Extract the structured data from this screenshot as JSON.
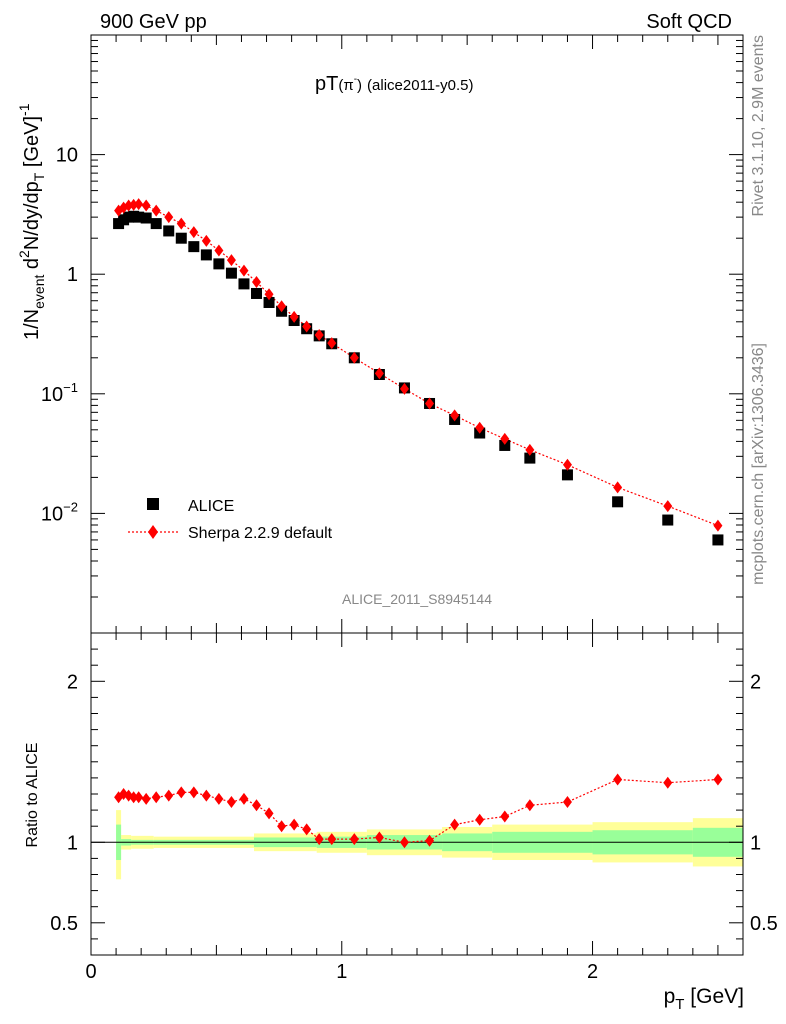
{
  "header": {
    "left": "900 GeV pp",
    "right": "Soft QCD"
  },
  "side_text": {
    "top": "Rivet 3.1.10,  2.9M events",
    "bottom": "mcplots.cern.ch [arXiv:1306.3436]"
  },
  "watermark": "ALICE_2011_S8945144",
  "colors": {
    "data": "#000000",
    "mc": "#ff0000",
    "band_inner": "#99ff99",
    "band_outer": "#ffff99"
  },
  "chart_data": [
    {
      "type": "scatter",
      "title_main": "pT",
      "title_particle": "(π",
      "title_charge": "-",
      "title_close": ")",
      "title_tag": "(alice2011-y0.5)",
      "ylabel": {
        "a": "1/N",
        "a_sub": "event",
        "b": " d",
        "b_sup": "2",
        "c": "N/dy/dp",
        "c_sub": "T",
        "d": " [GeV]",
        "d_sup": "-1"
      },
      "yscale": "log",
      "ylim": [
        0.001,
        100
      ],
      "xlim": [
        0,
        2.6
      ],
      "ytick_labels": [
        {
          "v": 0.01,
          "base": "10",
          "exp": "−2"
        },
        {
          "v": 0.1,
          "base": "10",
          "exp": "−1"
        },
        {
          "v": 1,
          "base": "1",
          "exp": ""
        },
        {
          "v": 10,
          "base": "10",
          "exp": ""
        }
      ],
      "legend": {
        "position": "bottom-left",
        "data_label": "ALICE",
        "mc_label": "Sherpa 2.2.9 default"
      },
      "x": [
        0.11,
        0.13,
        0.15,
        0.17,
        0.19,
        0.22,
        0.26,
        0.31,
        0.36,
        0.41,
        0.46,
        0.51,
        0.56,
        0.61,
        0.66,
        0.71,
        0.76,
        0.81,
        0.86,
        0.91,
        0.96,
        1.05,
        1.15,
        1.25,
        1.35,
        1.45,
        1.55,
        1.65,
        1.75,
        1.9,
        2.1,
        2.3,
        2.5
      ],
      "series": [
        {
          "name": "ALICE",
          "values": [
            2.65,
            2.85,
            3.0,
            3.05,
            3.0,
            2.95,
            2.65,
            2.3,
            2.0,
            1.7,
            1.45,
            1.22,
            1.02,
            0.83,
            0.69,
            0.58,
            0.49,
            0.41,
            0.35,
            0.305,
            0.262,
            0.2,
            0.145,
            0.112,
            0.083,
            0.061,
            0.047,
            0.037,
            0.029,
            0.021,
            0.0125,
            0.0088,
            0.006
          ]
        },
        {
          "name": "Sherpa 2.2.9 default",
          "values": [
            3.4,
            3.6,
            3.75,
            3.8,
            3.85,
            3.75,
            3.4,
            3.0,
            2.65,
            2.25,
            1.9,
            1.58,
            1.31,
            1.07,
            0.86,
            0.68,
            0.54,
            0.44,
            0.365,
            0.31,
            0.265,
            0.2,
            0.148,
            0.11,
            0.083,
            0.066,
            0.052,
            0.042,
            0.034,
            0.0255,
            0.0165,
            0.0115,
            0.0079
          ]
        }
      ]
    },
    {
      "type": "scatter",
      "ylabel": "Ratio to ALICE",
      "xlabel": {
        "main": "p",
        "sub": "T",
        "unit": " [GeV]"
      },
      "ylim": [
        0.3,
        2.3
      ],
      "xlim": [
        0,
        2.6
      ],
      "yticks": [
        0.5,
        1,
        2
      ],
      "ytick_labels": [
        "0.5",
        "1",
        "2"
      ],
      "xticks": [
        0,
        1,
        2
      ],
      "xtick_labels": [
        "0",
        "1",
        "2"
      ],
      "ratio": [
        1.28,
        1.3,
        1.29,
        1.28,
        1.28,
        1.27,
        1.28,
        1.29,
        1.31,
        1.31,
        1.29,
        1.27,
        1.25,
        1.27,
        1.23,
        1.18,
        1.1,
        1.11,
        1.08,
        1.02,
        1.02,
        1.02,
        1.03,
        1.0,
        1.01,
        1.11,
        1.14,
        1.16,
        1.23,
        1.25,
        1.39,
        1.37,
        1.39
      ],
      "bands": [
        {
          "lo": 0.1,
          "hi": 0.12,
          "inner": [
            0.89,
            1.11
          ],
          "outer": [
            0.77,
            1.2
          ]
        },
        {
          "lo": 0.12,
          "hi": 0.16,
          "inner": [
            0.98,
            1.02
          ],
          "outer": [
            0.955,
            1.045
          ]
        },
        {
          "lo": 0.16,
          "hi": 0.25,
          "inner": [
            0.985,
            1.015
          ],
          "outer": [
            0.96,
            1.04
          ]
        },
        {
          "lo": 0.25,
          "hi": 0.65,
          "inner": [
            0.985,
            1.015
          ],
          "outer": [
            0.965,
            1.035
          ]
        },
        {
          "lo": 0.65,
          "hi": 0.9,
          "inner": [
            0.97,
            1.03
          ],
          "outer": [
            0.945,
            1.055
          ]
        },
        {
          "lo": 0.9,
          "hi": 1.1,
          "inner": [
            0.965,
            1.035
          ],
          "outer": [
            0.935,
            1.065
          ]
        },
        {
          "lo": 1.1,
          "hi": 1.4,
          "inner": [
            0.955,
            1.045
          ],
          "outer": [
            0.92,
            1.08
          ]
        },
        {
          "lo": 1.4,
          "hi": 1.6,
          "inner": [
            0.945,
            1.055
          ],
          "outer": [
            0.905,
            1.095
          ]
        },
        {
          "lo": 1.6,
          "hi": 2.0,
          "inner": [
            0.935,
            1.065
          ],
          "outer": [
            0.89,
            1.11
          ]
        },
        {
          "lo": 2.0,
          "hi": 2.4,
          "inner": [
            0.925,
            1.075
          ],
          "outer": [
            0.875,
            1.125
          ]
        },
        {
          "lo": 2.4,
          "hi": 2.6,
          "inner": [
            0.91,
            1.09
          ],
          "outer": [
            0.85,
            1.15
          ]
        }
      ]
    }
  ]
}
